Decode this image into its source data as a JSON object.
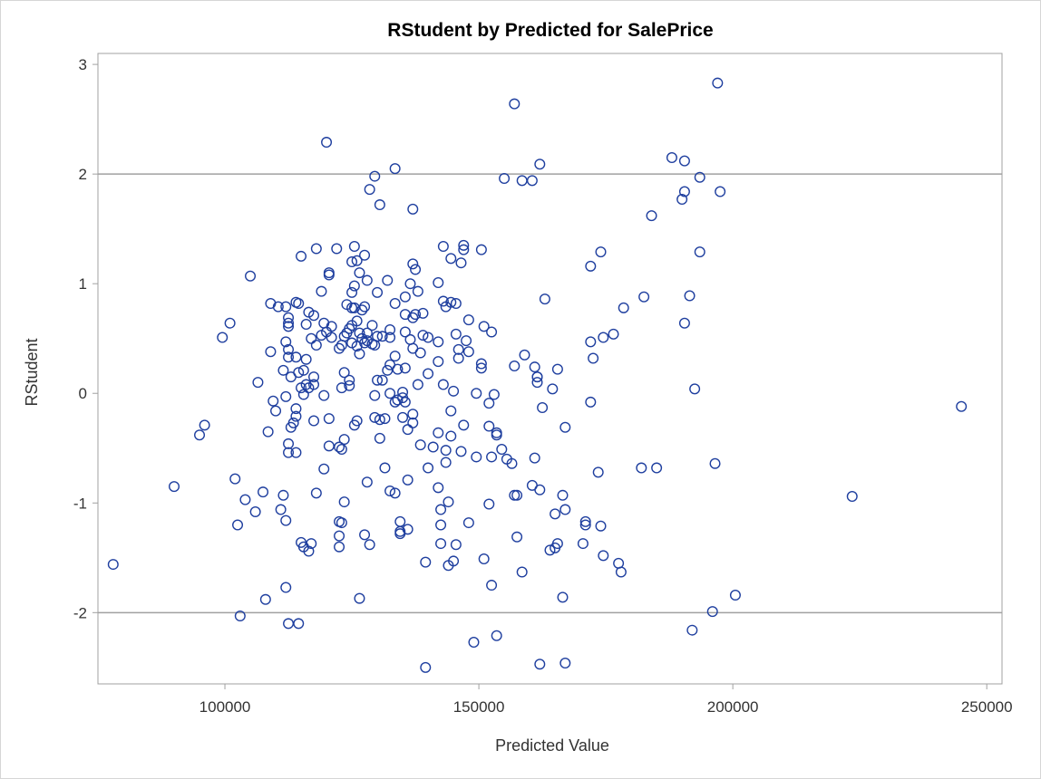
{
  "chart_data": {
    "type": "scatter",
    "title": "RStudent by Predicted for SalePrice",
    "xlabel": "Predicted Value",
    "ylabel": "RStudent",
    "xlim": [
      75000,
      253000
    ],
    "ylim": [
      -2.65,
      3.1
    ],
    "xticks": [
      100000,
      150000,
      200000,
      250000
    ],
    "yticks": [
      -2,
      -1,
      0,
      1,
      2,
      3
    ],
    "xtick_labels": [
      "100000",
      "150000",
      "200000",
      "250000"
    ],
    "ytick_labels": [
      "-2",
      "-1",
      "0",
      "1",
      "2",
      "3"
    ],
    "reference_lines_y": [
      -2,
      2
    ],
    "grid": false,
    "marker": "open-circle",
    "marker_color": "#1f3f9f",
    "points": [
      [
        78000,
        -1.56
      ],
      [
        90000,
        -0.85
      ],
      [
        95000,
        -0.38
      ],
      [
        96000,
        -0.29
      ],
      [
        99500,
        0.51
      ],
      [
        101000,
        0.64
      ],
      [
        102000,
        -0.78
      ],
      [
        102500,
        -1.2
      ],
      [
        103000,
        -2.03
      ],
      [
        104000,
        -0.97
      ],
      [
        105000,
        1.07
      ],
      [
        106000,
        -1.08
      ],
      [
        106500,
        0.1
      ],
      [
        107500,
        -0.9
      ],
      [
        108000,
        -1.88
      ],
      [
        108500,
        -0.35
      ],
      [
        109000,
        0.82
      ],
      [
        109000,
        0.38
      ],
      [
        109500,
        -0.07
      ],
      [
        110000,
        -0.16
      ],
      [
        110500,
        0.79
      ],
      [
        111000,
        -1.06
      ],
      [
        111500,
        -0.93
      ],
      [
        111500,
        0.21
      ],
      [
        112000,
        0.79
      ],
      [
        112000,
        0.47
      ],
      [
        112000,
        -0.03
      ],
      [
        112000,
        -1.16
      ],
      [
        112000,
        -1.77
      ],
      [
        112500,
        0.69
      ],
      [
        112500,
        0.64
      ],
      [
        112500,
        0.61
      ],
      [
        112500,
        0.4
      ],
      [
        112500,
        0.33
      ],
      [
        112500,
        -0.46
      ],
      [
        112500,
        -0.54
      ],
      [
        112500,
        -2.1
      ],
      [
        113000,
        -0.31
      ],
      [
        113000,
        0.15
      ],
      [
        113500,
        -0.27
      ],
      [
        114000,
        0.83
      ],
      [
        114000,
        0.33
      ],
      [
        114000,
        -0.14
      ],
      [
        114000,
        -0.21
      ],
      [
        114000,
        -0.54
      ],
      [
        114500,
        -2.1
      ],
      [
        114500,
        0.82
      ],
      [
        114500,
        0.19
      ],
      [
        115000,
        1.25
      ],
      [
        115000,
        0.05
      ],
      [
        115000,
        -1.36
      ],
      [
        115500,
        -0.01
      ],
      [
        115500,
        -1.4
      ],
      [
        115500,
        0.21
      ],
      [
        116000,
        0.63
      ],
      [
        116000,
        0.31
      ],
      [
        116000,
        0.08
      ],
      [
        116500,
        -1.44
      ],
      [
        116500,
        0.74
      ],
      [
        116500,
        0.05
      ],
      [
        117000,
        -1.37
      ],
      [
        117000,
        0.5
      ],
      [
        117500,
        0.71
      ],
      [
        117500,
        0.15
      ],
      [
        117500,
        0.08
      ],
      [
        117500,
        -0.25
      ],
      [
        118000,
        1.32
      ],
      [
        118000,
        0.44
      ],
      [
        118000,
        -0.91
      ],
      [
        119000,
        0.53
      ],
      [
        119000,
        0.93
      ],
      [
        119500,
        0.64
      ],
      [
        119500,
        -0.02
      ],
      [
        119500,
        -0.69
      ],
      [
        120000,
        2.29
      ],
      [
        120000,
        0.56
      ],
      [
        120500,
        1.1
      ],
      [
        120500,
        1.08
      ],
      [
        120500,
        -0.23
      ],
      [
        120500,
        -0.48
      ],
      [
        121000,
        0.61
      ],
      [
        121000,
        0.51
      ],
      [
        122000,
        1.32
      ],
      [
        122500,
        0.41
      ],
      [
        122500,
        -0.49
      ],
      [
        122500,
        -1.17
      ],
      [
        122500,
        -1.3
      ],
      [
        122500,
        -1.4
      ],
      [
        123000,
        0.44
      ],
      [
        123000,
        0.05
      ],
      [
        123000,
        -0.51
      ],
      [
        123000,
        -1.18
      ],
      [
        123500,
        0.52
      ],
      [
        123500,
        0.19
      ],
      [
        123500,
        -0.42
      ],
      [
        123500,
        -0.99
      ],
      [
        124000,
        0.81
      ],
      [
        124000,
        0.55
      ],
      [
        124500,
        0.59
      ],
      [
        124500,
        0.12
      ],
      [
        124500,
        0.07
      ],
      [
        125000,
        1.2
      ],
      [
        125000,
        0.92
      ],
      [
        125000,
        0.78
      ],
      [
        125000,
        0.62
      ],
      [
        125000,
        0.46
      ],
      [
        125500,
        1.34
      ],
      [
        125500,
        0.98
      ],
      [
        125500,
        0.78
      ],
      [
        125500,
        -0.29
      ],
      [
        126000,
        1.21
      ],
      [
        126000,
        -0.25
      ],
      [
        126000,
        0.66
      ],
      [
        126000,
        0.43
      ],
      [
        126500,
        1.1
      ],
      [
        126500,
        0.55
      ],
      [
        126500,
        0.36
      ],
      [
        126500,
        -1.87
      ],
      [
        127000,
        0.76
      ],
      [
        127000,
        0.5
      ],
      [
        127500,
        1.26
      ],
      [
        127500,
        0.79
      ],
      [
        127500,
        0.46
      ],
      [
        127500,
        -1.29
      ],
      [
        128000,
        1.03
      ],
      [
        128000,
        0.55
      ],
      [
        128000,
        0.48
      ],
      [
        128000,
        -0.81
      ],
      [
        128500,
        1.86
      ],
      [
        128500,
        -1.38
      ],
      [
        129000,
        0.62
      ],
      [
        129000,
        0.45
      ],
      [
        129500,
        1.98
      ],
      [
        129500,
        0.44
      ],
      [
        129500,
        -0.02
      ],
      [
        129500,
        -0.22
      ],
      [
        130000,
        0.92
      ],
      [
        130000,
        0.52
      ],
      [
        130000,
        0.12
      ],
      [
        130500,
        1.72
      ],
      [
        130500,
        -0.24
      ],
      [
        130500,
        -0.41
      ],
      [
        131000,
        0.52
      ],
      [
        131000,
        0.12
      ],
      [
        131500,
        -0.23
      ],
      [
        131500,
        -0.68
      ],
      [
        132000,
        1.03
      ],
      [
        132000,
        0.21
      ],
      [
        132500,
        0.58
      ],
      [
        132500,
        0.51
      ],
      [
        132500,
        0.26
      ],
      [
        132500,
        0.0
      ],
      [
        132500,
        -0.89
      ],
      [
        133500,
        2.05
      ],
      [
        133500,
        0.82
      ],
      [
        133500,
        0.34
      ],
      [
        133500,
        -0.08
      ],
      [
        133500,
        -0.91
      ],
      [
        134000,
        0.22
      ],
      [
        134000,
        -0.06
      ],
      [
        134500,
        -1.17
      ],
      [
        134500,
        -1.26
      ],
      [
        134500,
        -1.28
      ],
      [
        135000,
        0.01
      ],
      [
        135000,
        -0.04
      ],
      [
        135000,
        -0.22
      ],
      [
        135500,
        0.88
      ],
      [
        135500,
        0.72
      ],
      [
        135500,
        0.56
      ],
      [
        135500,
        0.23
      ],
      [
        135500,
        -0.08
      ],
      [
        136000,
        -0.33
      ],
      [
        136000,
        -0.79
      ],
      [
        136000,
        -1.24
      ],
      [
        136500,
        1.0
      ],
      [
        136500,
        0.49
      ],
      [
        137000,
        1.68
      ],
      [
        137000,
        1.18
      ],
      [
        137000,
        0.69
      ],
      [
        137000,
        0.41
      ],
      [
        137000,
        -0.19
      ],
      [
        137000,
        -0.27
      ],
      [
        137500,
        1.13
      ],
      [
        137500,
        0.72
      ],
      [
        138000,
        0.93
      ],
      [
        138000,
        0.08
      ],
      [
        138500,
        0.37
      ],
      [
        138500,
        -0.47
      ],
      [
        139000,
        0.73
      ],
      [
        139000,
        0.53
      ],
      [
        139500,
        -1.54
      ],
      [
        139500,
        -2.5
      ],
      [
        140000,
        0.51
      ],
      [
        140000,
        0.18
      ],
      [
        140000,
        -0.68
      ],
      [
        141000,
        -0.49
      ],
      [
        142000,
        1.01
      ],
      [
        142000,
        0.29
      ],
      [
        142000,
        0.47
      ],
      [
        142000,
        -0.36
      ],
      [
        142000,
        -0.86
      ],
      [
        142500,
        -1.06
      ],
      [
        142500,
        -1.2
      ],
      [
        142500,
        -1.37
      ],
      [
        143000,
        1.34
      ],
      [
        143000,
        0.84
      ],
      [
        143000,
        0.08
      ],
      [
        143500,
        0.79
      ],
      [
        143500,
        -0.52
      ],
      [
        143500,
        -0.63
      ],
      [
        144000,
        -0.99
      ],
      [
        144000,
        -1.57
      ],
      [
        144500,
        1.23
      ],
      [
        144500,
        0.83
      ],
      [
        144500,
        -0.16
      ],
      [
        144500,
        -0.39
      ],
      [
        145000,
        -1.53
      ],
      [
        145000,
        0.02
      ],
      [
        145500,
        0.82
      ],
      [
        145500,
        0.54
      ],
      [
        145500,
        -1.38
      ],
      [
        146000,
        0.32
      ],
      [
        146000,
        0.4
      ],
      [
        146500,
        1.19
      ],
      [
        146500,
        -0.53
      ],
      [
        147000,
        1.31
      ],
      [
        147000,
        1.35
      ],
      [
        147000,
        -0.29
      ],
      [
        147500,
        0.48
      ],
      [
        148000,
        0.67
      ],
      [
        148000,
        0.38
      ],
      [
        148000,
        -1.18
      ],
      [
        149000,
        -2.27
      ],
      [
        149500,
        0.0
      ],
      [
        149500,
        -0.58
      ],
      [
        150500,
        1.31
      ],
      [
        150500,
        0.27
      ],
      [
        150500,
        0.23
      ],
      [
        151000,
        0.61
      ],
      [
        151000,
        -1.51
      ],
      [
        152000,
        -0.3
      ],
      [
        152000,
        -0.09
      ],
      [
        152000,
        -1.01
      ],
      [
        152500,
        0.56
      ],
      [
        152500,
        -0.58
      ],
      [
        152500,
        -1.75
      ],
      [
        153000,
        -0.01
      ],
      [
        153500,
        -0.36
      ],
      [
        153500,
        -0.38
      ],
      [
        153500,
        -2.21
      ],
      [
        154500,
        -0.51
      ],
      [
        155000,
        1.96
      ],
      [
        155500,
        -0.6
      ],
      [
        156500,
        -0.64
      ],
      [
        157000,
        2.64
      ],
      [
        157000,
        0.25
      ],
      [
        157000,
        -0.93
      ],
      [
        157500,
        -0.93
      ],
      [
        157500,
        -1.31
      ],
      [
        158500,
        1.94
      ],
      [
        158500,
        -1.63
      ],
      [
        159000,
        0.35
      ],
      [
        160500,
        1.94
      ],
      [
        160500,
        -0.84
      ],
      [
        161000,
        0.24
      ],
      [
        161000,
        -0.59
      ],
      [
        161500,
        0.15
      ],
      [
        161500,
        0.1
      ],
      [
        161500,
        0.15
      ],
      [
        162000,
        2.09
      ],
      [
        162000,
        -0.88
      ],
      [
        162000,
        -2.47
      ],
      [
        162500,
        -0.13
      ],
      [
        163000,
        0.86
      ],
      [
        164000,
        -1.43
      ],
      [
        164500,
        0.04
      ],
      [
        165000,
        -1.41
      ],
      [
        165000,
        -1.1
      ],
      [
        165500,
        -1.37
      ],
      [
        165500,
        0.22
      ],
      [
        166500,
        -1.86
      ],
      [
        166500,
        -0.93
      ],
      [
        167000,
        -1.06
      ],
      [
        167000,
        -0.31
      ],
      [
        167000,
        -2.46
      ],
      [
        170500,
        -1.37
      ],
      [
        171000,
        -1.2
      ],
      [
        171000,
        -1.17
      ],
      [
        172000,
        -0.08
      ],
      [
        172000,
        0.47
      ],
      [
        172000,
        1.16
      ],
      [
        172500,
        0.32
      ],
      [
        173500,
        -0.72
      ],
      [
        174000,
        -1.21
      ],
      [
        174000,
        1.29
      ],
      [
        174500,
        -1.48
      ],
      [
        174500,
        0.51
      ],
      [
        176500,
        0.54
      ],
      [
        177500,
        -1.55
      ],
      [
        178000,
        -1.63
      ],
      [
        178500,
        0.78
      ],
      [
        182000,
        -0.68
      ],
      [
        182500,
        0.88
      ],
      [
        184000,
        1.62
      ],
      [
        185000,
        -0.68
      ],
      [
        188000,
        2.15
      ],
      [
        190000,
        1.77
      ],
      [
        190500,
        2.12
      ],
      [
        190500,
        1.84
      ],
      [
        190500,
        0.64
      ],
      [
        191500,
        0.89
      ],
      [
        192000,
        -2.16
      ],
      [
        192500,
        0.04
      ],
      [
        193500,
        1.97
      ],
      [
        193500,
        1.29
      ],
      [
        196000,
        -1.99
      ],
      [
        196500,
        -0.64
      ],
      [
        197000,
        2.83
      ],
      [
        197500,
        1.84
      ],
      [
        200500,
        -1.84
      ],
      [
        223500,
        -0.94
      ],
      [
        245000,
        -0.12
      ]
    ]
  }
}
